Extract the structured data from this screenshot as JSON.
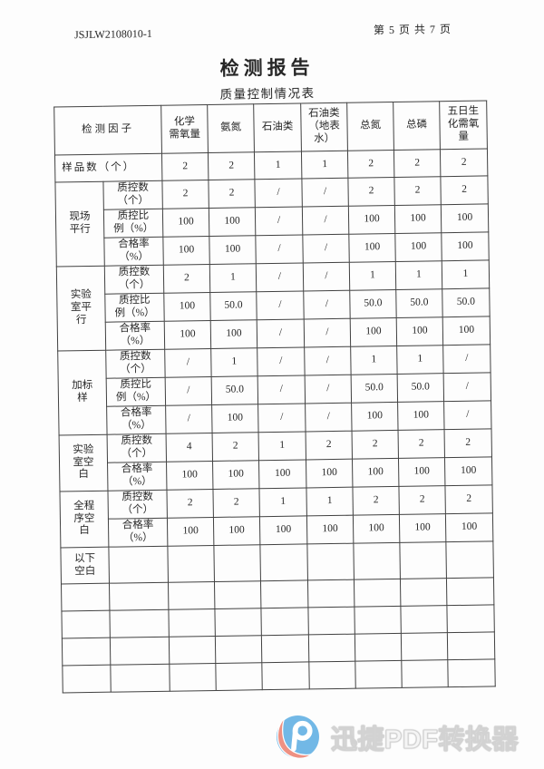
{
  "header": {
    "report_no": "JSJLW2108010-1",
    "page_info": "第 5 页 共 7 页"
  },
  "title": "检测报告",
  "subtitle": "质量控制情况表",
  "table": {
    "factor_header": "检测因子",
    "columns": [
      "化学\n需氧量",
      "氨氮",
      "石油类",
      "石油类\n（地表\n水）",
      "总氮",
      "总磷",
      "五日生\n化需氧\n量"
    ],
    "sample_row": {
      "label": "样品数（个）",
      "values": [
        "2",
        "2",
        "1",
        "1",
        "2",
        "2",
        "2"
      ]
    },
    "groups": [
      {
        "label": "现场\n平行",
        "rows": [
          {
            "label": "质控数\n（个）",
            "values": [
              "2",
              "2",
              "/",
              "/",
              "2",
              "2",
              "2"
            ]
          },
          {
            "label": "质控比\n例（%）",
            "values": [
              "100",
              "100",
              "/",
              "/",
              "100",
              "100",
              "100"
            ]
          },
          {
            "label": "合格率\n（%）",
            "values": [
              "100",
              "100",
              "/",
              "/",
              "100",
              "100",
              "100"
            ]
          }
        ]
      },
      {
        "label": "实验\n室平\n行",
        "rows": [
          {
            "label": "质控数\n（个）",
            "values": [
              "2",
              "1",
              "/",
              "/",
              "1",
              "1",
              "1"
            ]
          },
          {
            "label": "质控比\n例（%）",
            "values": [
              "100",
              "50.0",
              "/",
              "/",
              "50.0",
              "50.0",
              "50.0"
            ]
          },
          {
            "label": "合格率\n（%）",
            "values": [
              "100",
              "100",
              "/",
              "/",
              "100",
              "100",
              "100"
            ]
          }
        ]
      },
      {
        "label": "加标\n样",
        "rows": [
          {
            "label": "质控数\n（个）",
            "values": [
              "/",
              "1",
              "/",
              "/",
              "1",
              "1",
              "/"
            ]
          },
          {
            "label": "质控比\n例（%）",
            "values": [
              "/",
              "50.0",
              "/",
              "/",
              "50.0",
              "50.0",
              "/"
            ]
          },
          {
            "label": "合格率\n（%）",
            "values": [
              "/",
              "100",
              "/",
              "/",
              "100",
              "100",
              "/"
            ]
          }
        ]
      },
      {
        "label": "实验\n室空\n白",
        "rows": [
          {
            "label": "质控数\n（个）",
            "values": [
              "4",
              "2",
              "1",
              "2",
              "2",
              "2",
              "2"
            ]
          },
          {
            "label": "合格率\n（%）",
            "values": [
              "100",
              "100",
              "100",
              "100",
              "100",
              "100",
              "100"
            ]
          }
        ]
      },
      {
        "label": "全程\n序空\n白",
        "rows": [
          {
            "label": "质控数\n（个）",
            "values": [
              "2",
              "2",
              "1",
              "1",
              "2",
              "2",
              "2"
            ]
          },
          {
            "label": "合格率\n（%）",
            "values": [
              "100",
              "100",
              "100",
              "100",
              "100",
              "100",
              "100"
            ]
          }
        ]
      }
    ],
    "below_blank_label": "以下\n空白",
    "empty_row_count": 4
  },
  "watermark": {
    "text": "迅捷PDF转换器",
    "colors": {
      "circle": "#72b8e6",
      "ribbon": "#ee9183",
      "glyph": "#ffffff"
    }
  },
  "colors": {
    "border": "#414141",
    "text": "#262626",
    "watermark_text": "#f5f5f5"
  }
}
